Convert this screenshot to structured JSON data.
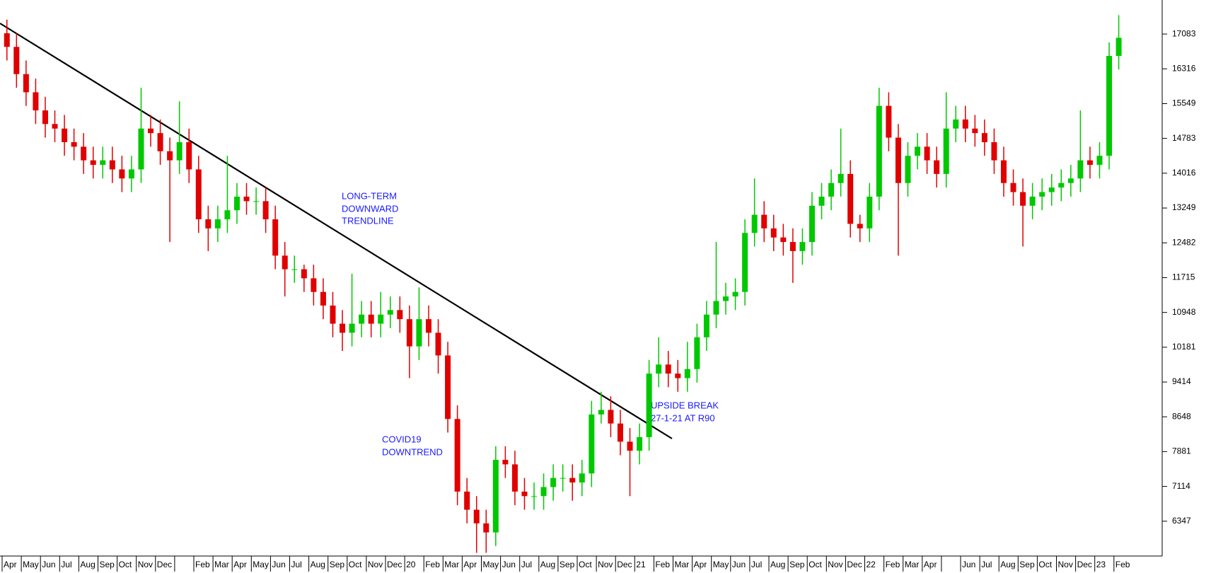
{
  "chart_data": {
    "type": "candlestick",
    "annotations": [
      "LONG-TERM",
      "DOWNWARD",
      "TRENDLINE",
      "COVID19",
      "DOWNTREND",
      "UPSIDE BREAK",
      "27-1-21 AT R90"
    ],
    "categories": [
      "Apr",
      null,
      "May",
      null,
      "Jun",
      null,
      "Jul",
      null,
      "Aug",
      null,
      "Sep",
      null,
      "Oct",
      null,
      "Nov",
      null,
      "Dec",
      null,
      null,
      null,
      "Feb",
      null,
      "Mar",
      null,
      "Apr",
      null,
      "May",
      null,
      "Jun",
      null,
      "Jul",
      null,
      "Aug",
      null,
      "Sep",
      null,
      "Oct",
      null,
      "Nov",
      null,
      "Dec",
      null,
      "20",
      null,
      "Feb",
      null,
      "Mar",
      null,
      "Apr",
      null,
      "May",
      null,
      "Jun",
      null,
      "Jul",
      null,
      "Aug",
      null,
      "Sep",
      null,
      "Oct",
      null,
      "Nov",
      null,
      "Dec",
      null,
      "21",
      null,
      "Feb",
      null,
      "Mar",
      null,
      "Apr",
      null,
      "May",
      null,
      "Jun",
      null,
      "Jul",
      null,
      "Aug",
      null,
      "Sep",
      null,
      "Oct",
      null,
      "Nov",
      null,
      "Dec",
      null,
      "22",
      null,
      "Feb",
      null,
      "Mar",
      null,
      "Apr",
      null,
      null,
      null,
      "Jun",
      null,
      "Jul",
      null,
      "Aug",
      null,
      "Sep",
      null,
      "Oct",
      null,
      "Nov",
      null,
      "Dec",
      null,
      "23",
      null,
      "Feb"
    ],
    "series": [
      {
        "up_color": "#00c800",
        "down_color": "#e00000",
        "open": [
          17100,
          16800,
          16200,
          15800,
          15400,
          15100,
          15000,
          14700,
          14600,
          14300,
          14200,
          14300,
          14100,
          13900,
          14100,
          15000,
          14900,
          14500,
          14300,
          14700,
          14100,
          13000,
          12800,
          13000,
          13200,
          13500,
          13400,
          13400,
          13000,
          12200,
          11900,
          11900,
          11700,
          11400,
          11100,
          10700,
          10500,
          10700,
          10900,
          10700,
          10900,
          11000,
          10800,
          10200,
          10800,
          10500,
          10000,
          8600,
          7000,
          6600,
          6300,
          6100,
          7700,
          7600,
          7000,
          6900,
          6900,
          7100,
          7300,
          7300,
          7200,
          7400,
          8700,
          8800,
          8500,
          8100,
          7900,
          8200,
          9600,
          9800,
          9600,
          9500,
          9700,
          10400,
          10900,
          11200,
          11300,
          11400,
          12700,
          13100,
          12800,
          12600,
          12500,
          12300,
          12500,
          13300,
          13500,
          13800,
          14000,
          12900,
          12800,
          13500,
          15500,
          14800,
          13800,
          14400,
          14600,
          14300,
          14000,
          15000,
          15200,
          15000,
          14900,
          14700,
          14300,
          13800,
          13600,
          13300,
          13500,
          13600,
          13700,
          13800,
          13900,
          14300,
          14200,
          14400,
          16600
        ],
        "high": [
          17400,
          17100,
          16500,
          16100,
          15700,
          15400,
          15300,
          15000,
          14900,
          14600,
          14600,
          14600,
          14400,
          14400,
          15900,
          15300,
          15200,
          14800,
          15600,
          15000,
          14400,
          13300,
          13300,
          14400,
          13800,
          13800,
          13700,
          13700,
          13300,
          12500,
          12200,
          12000,
          12000,
          11700,
          11400,
          11000,
          11800,
          11200,
          11200,
          11400,
          11300,
          11300,
          11100,
          11500,
          11100,
          10800,
          10300,
          8900,
          7300,
          6900,
          6600,
          8000,
          8000,
          7900,
          7300,
          7200,
          7400,
          7600,
          7600,
          7600,
          7700,
          9000,
          9200,
          9100,
          8800,
          8400,
          8500,
          9900,
          10400,
          10100,
          9900,
          10300,
          10700,
          11200,
          12500,
          11600,
          11700,
          13000,
          13900,
          13400,
          13100,
          12900,
          12800,
          12800,
          13600,
          13800,
          14100,
          15000,
          14300,
          13100,
          13800,
          15900,
          15800,
          15100,
          14700,
          14900,
          14900,
          14600,
          15800,
          15500,
          15500,
          15300,
          15200,
          15000,
          14600,
          14100,
          13900,
          13800,
          13900,
          14000,
          14100,
          14200,
          15400,
          14600,
          14700,
          16900,
          17500
        ],
        "low": [
          16500,
          15900,
          15500,
          15100,
          14800,
          14700,
          14400,
          14300,
          14000,
          13900,
          13900,
          13800,
          13600,
          13600,
          13800,
          14600,
          14200,
          12500,
          14000,
          13800,
          12700,
          12300,
          12500,
          12700,
          12900,
          13100,
          13100,
          12700,
          11900,
          11300,
          11600,
          11400,
          11100,
          10800,
          10400,
          10100,
          10200,
          10400,
          10400,
          10400,
          10600,
          10500,
          9500,
          9900,
          10200,
          9600,
          8300,
          6700,
          6300,
          5650,
          5650,
          5800,
          7300,
          6700,
          6600,
          6600,
          6600,
          6800,
          7000,
          6800,
          6900,
          7100,
          8500,
          8200,
          7800,
          6900,
          7600,
          7900,
          9300,
          9300,
          9200,
          9200,
          9400,
          10100,
          10600,
          10900,
          11000,
          11100,
          12400,
          12500,
          12300,
          12200,
          11600,
          12000,
          12200,
          13000,
          13200,
          13500,
          12600,
          12500,
          12500,
          13200,
          14500,
          12200,
          13500,
          14100,
          14000,
          13700,
          13700,
          14700,
          14700,
          14600,
          14400,
          14000,
          13500,
          13300,
          12400,
          13000,
          13200,
          13300,
          13400,
          13500,
          13600,
          13900,
          13900,
          14100,
          16300
        ],
        "close": [
          16800,
          16200,
          15800,
          15400,
          15100,
          15000,
          14700,
          14600,
          14300,
          14200,
          14300,
          14100,
          13900,
          14100,
          15000,
          14900,
          14500,
          14300,
          14700,
          14100,
          13000,
          12800,
          13000,
          13200,
          13500,
          13400,
          13400,
          13000,
          12200,
          11900,
          11900,
          11700,
          11400,
          11100,
          10700,
          10500,
          10700,
          10900,
          10700,
          10900,
          11000,
          10800,
          10200,
          10800,
          10500,
          10000,
          8600,
          7000,
          6600,
          6300,
          6100,
          7700,
          7600,
          7000,
          6900,
          6900,
          7100,
          7300,
          7300,
          7200,
          7400,
          8700,
          8800,
          8500,
          8100,
          7900,
          8200,
          9600,
          9800,
          9600,
          9500,
          9700,
          10400,
          10900,
          11200,
          11300,
          11400,
          12700,
          13100,
          12800,
          12600,
          12500,
          12300,
          12500,
          13300,
          13500,
          13800,
          14000,
          12900,
          12800,
          13500,
          15500,
          14800,
          13800,
          14400,
          14600,
          14300,
          14000,
          15000,
          15200,
          15000,
          14900,
          14700,
          14300,
          13800,
          13600,
          13300,
          13500,
          13600,
          13700,
          13800,
          13900,
          14300,
          14200,
          14400,
          16600,
          17000
        ]
      }
    ],
    "ylim": [
      5580,
      17833
    ],
    "yticks": [
      6347,
      7114,
      7881,
      8648,
      9414,
      10181,
      10948,
      11715,
      12482,
      13249,
      14016,
      14783,
      15549,
      16316,
      17083
    ],
    "grid": false
  }
}
